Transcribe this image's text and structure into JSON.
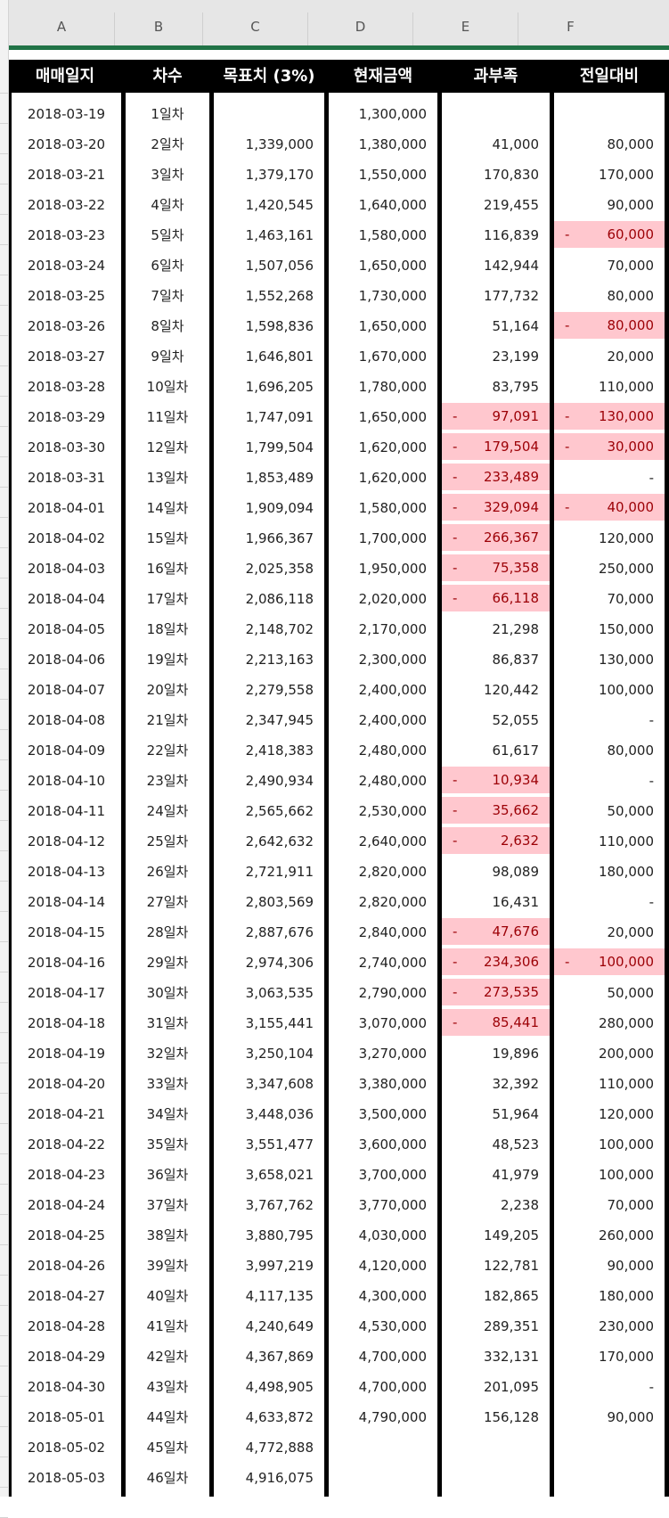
{
  "columns": [
    "A",
    "B",
    "C",
    "D",
    "E",
    "F"
  ],
  "headers": {
    "date": "매매일지",
    "seq": "차수",
    "target": "목표치 (3%)",
    "current": "현재금액",
    "over": "과부족",
    "prevdiff": "전일대비"
  },
  "colors": {
    "accent": "#217346",
    "negative_fill": "#ffc7ce",
    "negative_text": "#9c0006"
  },
  "rows": [
    {
      "date": "2018-03-19",
      "seq": "1일차",
      "target": "",
      "current": "1,300,000",
      "over": "",
      "over_neg": false,
      "prev": "",
      "prev_neg": false
    },
    {
      "date": "2018-03-20",
      "seq": "2일차",
      "target": "1,339,000",
      "current": "1,380,000",
      "over": "41,000",
      "over_neg": false,
      "prev": "80,000",
      "prev_neg": false
    },
    {
      "date": "2018-03-21",
      "seq": "3일차",
      "target": "1,379,170",
      "current": "1,550,000",
      "over": "170,830",
      "over_neg": false,
      "prev": "170,000",
      "prev_neg": false
    },
    {
      "date": "2018-03-22",
      "seq": "4일차",
      "target": "1,420,545",
      "current": "1,640,000",
      "over": "219,455",
      "over_neg": false,
      "prev": "90,000",
      "prev_neg": false
    },
    {
      "date": "2018-03-23",
      "seq": "5일차",
      "target": "1,463,161",
      "current": "1,580,000",
      "over": "116,839",
      "over_neg": false,
      "prev": "60,000",
      "prev_neg": true
    },
    {
      "date": "2018-03-24",
      "seq": "6일차",
      "target": "1,507,056",
      "current": "1,650,000",
      "over": "142,944",
      "over_neg": false,
      "prev": "70,000",
      "prev_neg": false
    },
    {
      "date": "2018-03-25",
      "seq": "7일차",
      "target": "1,552,268",
      "current": "1,730,000",
      "over": "177,732",
      "over_neg": false,
      "prev": "80,000",
      "prev_neg": false
    },
    {
      "date": "2018-03-26",
      "seq": "8일차",
      "target": "1,598,836",
      "current": "1,650,000",
      "over": "51,164",
      "over_neg": false,
      "prev": "80,000",
      "prev_neg": true
    },
    {
      "date": "2018-03-27",
      "seq": "9일차",
      "target": "1,646,801",
      "current": "1,670,000",
      "over": "23,199",
      "over_neg": false,
      "prev": "20,000",
      "prev_neg": false
    },
    {
      "date": "2018-03-28",
      "seq": "10일차",
      "target": "1,696,205",
      "current": "1,780,000",
      "over": "83,795",
      "over_neg": false,
      "prev": "110,000",
      "prev_neg": false
    },
    {
      "date": "2018-03-29",
      "seq": "11일차",
      "target": "1,747,091",
      "current": "1,650,000",
      "over": "97,091",
      "over_neg": true,
      "prev": "130,000",
      "prev_neg": true
    },
    {
      "date": "2018-03-30",
      "seq": "12일차",
      "target": "1,799,504",
      "current": "1,620,000",
      "over": "179,504",
      "over_neg": true,
      "prev": "30,000",
      "prev_neg": true
    },
    {
      "date": "2018-03-31",
      "seq": "13일차",
      "target": "1,853,489",
      "current": "1,620,000",
      "over": "233,489",
      "over_neg": true,
      "prev": "-",
      "prev_neg": false
    },
    {
      "date": "2018-04-01",
      "seq": "14일차",
      "target": "1,909,094",
      "current": "1,580,000",
      "over": "329,094",
      "over_neg": true,
      "prev": "40,000",
      "prev_neg": true
    },
    {
      "date": "2018-04-02",
      "seq": "15일차",
      "target": "1,966,367",
      "current": "1,700,000",
      "over": "266,367",
      "over_neg": true,
      "prev": "120,000",
      "prev_neg": false
    },
    {
      "date": "2018-04-03",
      "seq": "16일차",
      "target": "2,025,358",
      "current": "1,950,000",
      "over": "75,358",
      "over_neg": true,
      "prev": "250,000",
      "prev_neg": false
    },
    {
      "date": "2018-04-04",
      "seq": "17일차",
      "target": "2,086,118",
      "current": "2,020,000",
      "over": "66,118",
      "over_neg": true,
      "prev": "70,000",
      "prev_neg": false
    },
    {
      "date": "2018-04-05",
      "seq": "18일차",
      "target": "2,148,702",
      "current": "2,170,000",
      "over": "21,298",
      "over_neg": false,
      "prev": "150,000",
      "prev_neg": false
    },
    {
      "date": "2018-04-06",
      "seq": "19일차",
      "target": "2,213,163",
      "current": "2,300,000",
      "over": "86,837",
      "over_neg": false,
      "prev": "130,000",
      "prev_neg": false
    },
    {
      "date": "2018-04-07",
      "seq": "20일차",
      "target": "2,279,558",
      "current": "2,400,000",
      "over": "120,442",
      "over_neg": false,
      "prev": "100,000",
      "prev_neg": false
    },
    {
      "date": "2018-04-08",
      "seq": "21일차",
      "target": "2,347,945",
      "current": "2,400,000",
      "over": "52,055",
      "over_neg": false,
      "prev": "-",
      "prev_neg": false
    },
    {
      "date": "2018-04-09",
      "seq": "22일차",
      "target": "2,418,383",
      "current": "2,480,000",
      "over": "61,617",
      "over_neg": false,
      "prev": "80,000",
      "prev_neg": false
    },
    {
      "date": "2018-04-10",
      "seq": "23일차",
      "target": "2,490,934",
      "current": "2,480,000",
      "over": "10,934",
      "over_neg": true,
      "prev": "-",
      "prev_neg": false
    },
    {
      "date": "2018-04-11",
      "seq": "24일차",
      "target": "2,565,662",
      "current": "2,530,000",
      "over": "35,662",
      "over_neg": true,
      "prev": "50,000",
      "prev_neg": false
    },
    {
      "date": "2018-04-12",
      "seq": "25일차",
      "target": "2,642,632",
      "current": "2,640,000",
      "over": "2,632",
      "over_neg": true,
      "prev": "110,000",
      "prev_neg": false
    },
    {
      "date": "2018-04-13",
      "seq": "26일차",
      "target": "2,721,911",
      "current": "2,820,000",
      "over": "98,089",
      "over_neg": false,
      "prev": "180,000",
      "prev_neg": false
    },
    {
      "date": "2018-04-14",
      "seq": "27일차",
      "target": "2,803,569",
      "current": "2,820,000",
      "over": "16,431",
      "over_neg": false,
      "prev": "-",
      "prev_neg": false
    },
    {
      "date": "2018-04-15",
      "seq": "28일차",
      "target": "2,887,676",
      "current": "2,840,000",
      "over": "47,676",
      "over_neg": true,
      "prev": "20,000",
      "prev_neg": false
    },
    {
      "date": "2018-04-16",
      "seq": "29일차",
      "target": "2,974,306",
      "current": "2,740,000",
      "over": "234,306",
      "over_neg": true,
      "prev": "100,000",
      "prev_neg": true
    },
    {
      "date": "2018-04-17",
      "seq": "30일차",
      "target": "3,063,535",
      "current": "2,790,000",
      "over": "273,535",
      "over_neg": true,
      "prev": "50,000",
      "prev_neg": false
    },
    {
      "date": "2018-04-18",
      "seq": "31일차",
      "target": "3,155,441",
      "current": "3,070,000",
      "over": "85,441",
      "over_neg": true,
      "prev": "280,000",
      "prev_neg": false
    },
    {
      "date": "2018-04-19",
      "seq": "32일차",
      "target": "3,250,104",
      "current": "3,270,000",
      "over": "19,896",
      "over_neg": false,
      "prev": "200,000",
      "prev_neg": false
    },
    {
      "date": "2018-04-20",
      "seq": "33일차",
      "target": "3,347,608",
      "current": "3,380,000",
      "over": "32,392",
      "over_neg": false,
      "prev": "110,000",
      "prev_neg": false
    },
    {
      "date": "2018-04-21",
      "seq": "34일차",
      "target": "3,448,036",
      "current": "3,500,000",
      "over": "51,964",
      "over_neg": false,
      "prev": "120,000",
      "prev_neg": false
    },
    {
      "date": "2018-04-22",
      "seq": "35일차",
      "target": "3,551,477",
      "current": "3,600,000",
      "over": "48,523",
      "over_neg": false,
      "prev": "100,000",
      "prev_neg": false
    },
    {
      "date": "2018-04-23",
      "seq": "36일차",
      "target": "3,658,021",
      "current": "3,700,000",
      "over": "41,979",
      "over_neg": false,
      "prev": "100,000",
      "prev_neg": false
    },
    {
      "date": "2018-04-24",
      "seq": "37일차",
      "target": "3,767,762",
      "current": "3,770,000",
      "over": "2,238",
      "over_neg": false,
      "prev": "70,000",
      "prev_neg": false
    },
    {
      "date": "2018-04-25",
      "seq": "38일차",
      "target": "3,880,795",
      "current": "4,030,000",
      "over": "149,205",
      "over_neg": false,
      "prev": "260,000",
      "prev_neg": false
    },
    {
      "date": "2018-04-26",
      "seq": "39일차",
      "target": "3,997,219",
      "current": "4,120,000",
      "over": "122,781",
      "over_neg": false,
      "prev": "90,000",
      "prev_neg": false
    },
    {
      "date": "2018-04-27",
      "seq": "40일차",
      "target": "4,117,135",
      "current": "4,300,000",
      "over": "182,865",
      "over_neg": false,
      "prev": "180,000",
      "prev_neg": false
    },
    {
      "date": "2018-04-28",
      "seq": "41일차",
      "target": "4,240,649",
      "current": "4,530,000",
      "over": "289,351",
      "over_neg": false,
      "prev": "230,000",
      "prev_neg": false
    },
    {
      "date": "2018-04-29",
      "seq": "42일차",
      "target": "4,367,869",
      "current": "4,700,000",
      "over": "332,131",
      "over_neg": false,
      "prev": "170,000",
      "prev_neg": false
    },
    {
      "date": "2018-04-30",
      "seq": "43일차",
      "target": "4,498,905",
      "current": "4,700,000",
      "over": "201,095",
      "over_neg": false,
      "prev": "-",
      "prev_neg": false
    },
    {
      "date": "2018-05-01",
      "seq": "44일차",
      "target": "4,633,872",
      "current": "4,790,000",
      "over": "156,128",
      "over_neg": false,
      "prev": "90,000",
      "prev_neg": false
    },
    {
      "date": "2018-05-02",
      "seq": "45일차",
      "target": "4,772,888",
      "current": "",
      "over": "",
      "over_neg": false,
      "prev": "",
      "prev_neg": false
    },
    {
      "date": "2018-05-03",
      "seq": "46일차",
      "target": "4,916,075",
      "current": "",
      "over": "",
      "over_neg": false,
      "prev": "",
      "prev_neg": false
    }
  ]
}
